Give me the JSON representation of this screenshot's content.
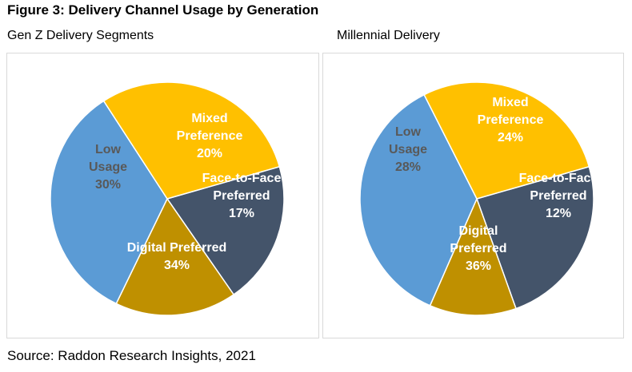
{
  "figure_title": "Figure 3: Delivery Channel Usage by Generation",
  "source": "Source: Raddon Research Insights, 2021",
  "chart_data": [
    {
      "type": "pie",
      "title": "Gen Z Delivery Segments",
      "start_angle_deg": -16,
      "slices": [
        {
          "label_lines": [
            "Mixed",
            "Preference",
            "20%"
          ],
          "value": 20,
          "color": "#44546a",
          "text_color": "#ffffff"
        },
        {
          "label_lines": [
            "Face-to-Face",
            "Preferred",
            "17%"
          ],
          "value": 17,
          "color": "#bf9000",
          "text_color": "#ffffff"
        },
        {
          "label_lines": [
            "Digital Preferred",
            "34%"
          ],
          "value": 34,
          "color": "#5b9bd5",
          "text_color": "#ffffff"
        },
        {
          "label_lines": [
            "Low",
            "Usage",
            "30%"
          ],
          "value": 30,
          "color": "#ffc000",
          "text_color": "#595959"
        }
      ]
    },
    {
      "type": "pie",
      "title": "Millennial Delivery",
      "start_angle_deg": -16,
      "slices": [
        {
          "label_lines": [
            "Mixed",
            "Preference",
            "24%"
          ],
          "value": 24,
          "color": "#44546a",
          "text_color": "#ffffff"
        },
        {
          "label_lines": [
            "Face-to-Face",
            "Preferred",
            "12%"
          ],
          "value": 12,
          "color": "#bf9000",
          "text_color": "#ffffff"
        },
        {
          "label_lines": [
            "Digital",
            "Preferred",
            "36%"
          ],
          "value": 36,
          "color": "#5b9bd5",
          "text_color": "#ffffff"
        },
        {
          "label_lines": [
            "Low",
            "Usage",
            "28%"
          ],
          "value": 28,
          "color": "#ffc000",
          "text_color": "#595959"
        }
      ]
    }
  ]
}
